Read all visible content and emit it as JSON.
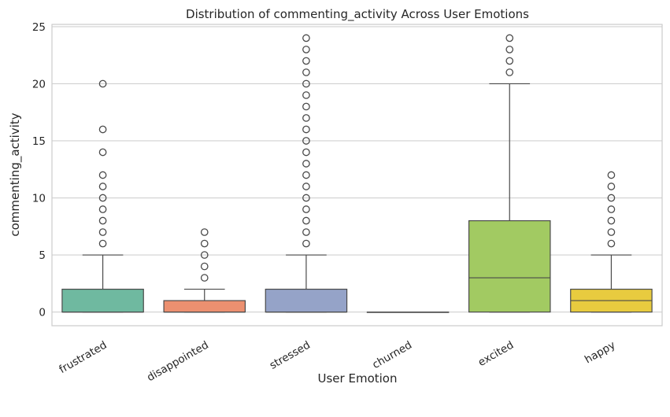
{
  "chart_data": {
    "type": "box",
    "title": "Distribution of commenting_activity Across User Emotions",
    "xlabel": "User Emotion",
    "ylabel": "commenting_activity",
    "ylim": [
      -1.2,
      25.2
    ],
    "yticks": [
      0,
      5,
      10,
      15,
      20,
      25
    ],
    "grid": "horizontal",
    "categories": [
      "frustrated",
      "disappointed",
      "stressed",
      "churned",
      "excited",
      "happy"
    ],
    "boxes": [
      {
        "name": "frustrated",
        "color": "#6fb9a0",
        "whisker_low": 0,
        "q1": 0,
        "median": 0,
        "q3": 2,
        "whisker_high": 5,
        "outliers": [
          6,
          7,
          8,
          9,
          10,
          11,
          12,
          14,
          16,
          20
        ]
      },
      {
        "name": "disappointed",
        "color": "#ec9070",
        "whisker_low": 0,
        "q1": 0,
        "median": 0,
        "q3": 1,
        "whisker_high": 2,
        "outliers": [
          3,
          4,
          5,
          6,
          7
        ]
      },
      {
        "name": "stressed",
        "color": "#95a3c8",
        "whisker_low": 0,
        "q1": 0,
        "median": 0,
        "q3": 2,
        "whisker_high": 5,
        "outliers": [
          6,
          7,
          8,
          9,
          10,
          11,
          12,
          13,
          14,
          15,
          16,
          17,
          18,
          19,
          20,
          21,
          22,
          23,
          24
        ]
      },
      {
        "name": "churned",
        "color": "#d9a8c8",
        "whisker_low": 0,
        "q1": 0,
        "median": 0,
        "q3": 0,
        "whisker_high": 0,
        "outliers": []
      },
      {
        "name": "excited",
        "color": "#a2ca62",
        "whisker_low": 0,
        "q1": 0,
        "median": 3,
        "q3": 8,
        "whisker_high": 20,
        "outliers": [
          21,
          22,
          23,
          24
        ]
      },
      {
        "name": "happy",
        "color": "#e8cb3f",
        "whisker_low": 0,
        "q1": 0,
        "median": 1,
        "q3": 2,
        "whisker_high": 5,
        "outliers": [
          6,
          7,
          8,
          9,
          10,
          11,
          12
        ]
      }
    ]
  }
}
